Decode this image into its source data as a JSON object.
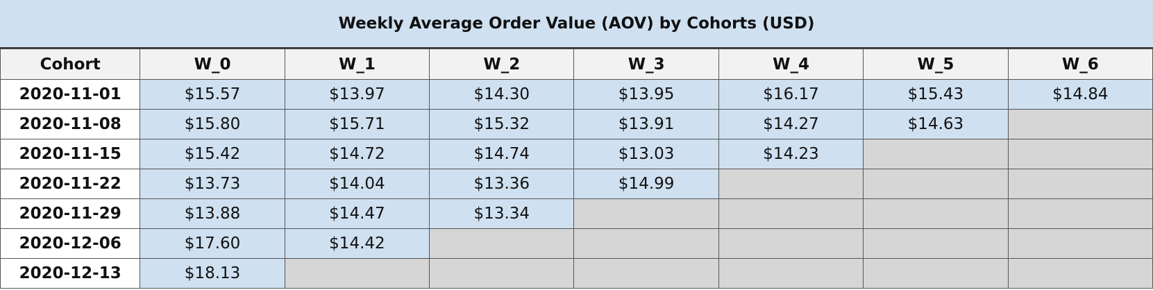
{
  "chart_data": {
    "type": "table",
    "title": "Weekly Average Order Value (AOV) by Cohorts (USD)",
    "columns": [
      "Cohort",
      "W_0",
      "W_1",
      "W_2",
      "W_3",
      "W_4",
      "W_5",
      "W_6"
    ],
    "rows": [
      {
        "cohort": "2020-11-01",
        "values": [
          "$15.57",
          "$13.97",
          "$14.30",
          "$13.95",
          "$16.17",
          "$15.43",
          "$14.84"
        ]
      },
      {
        "cohort": "2020-11-08",
        "values": [
          "$15.80",
          "$15.71",
          "$15.32",
          "$13.91",
          "$14.27",
          "$14.63",
          null
        ]
      },
      {
        "cohort": "2020-11-15",
        "values": [
          "$15.42",
          "$14.72",
          "$14.74",
          "$13.03",
          "$14.23",
          null,
          null
        ]
      },
      {
        "cohort": "2020-11-22",
        "values": [
          "$13.73",
          "$14.04",
          "$13.36",
          "$14.99",
          null,
          null,
          null
        ]
      },
      {
        "cohort": "2020-11-29",
        "values": [
          "$13.88",
          "$14.47",
          "$13.34",
          null,
          null,
          null,
          null
        ]
      },
      {
        "cohort": "2020-12-06",
        "values": [
          "$17.60",
          "$14.42",
          null,
          null,
          null,
          null,
          null
        ]
      },
      {
        "cohort": "2020-12-13",
        "values": [
          "$18.13",
          null,
          null,
          null,
          null,
          null,
          null
        ]
      }
    ],
    "colors": {
      "title_background": "#cfe0f1",
      "header_background": "#f2f2f2",
      "value_background": "#cfe0f1",
      "empty_background": "#d6d6d6",
      "cohort_background": "#ffffff"
    }
  }
}
